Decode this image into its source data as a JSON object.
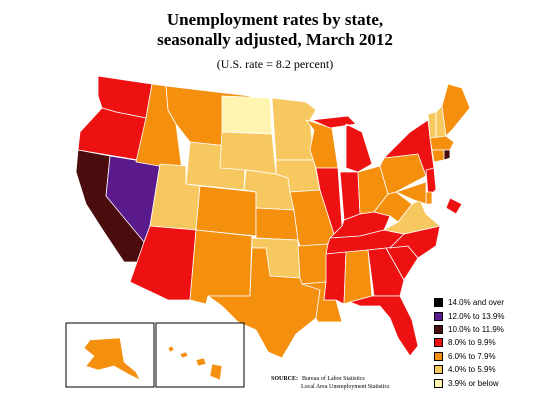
{
  "title_line1": "Unemployment rates by state,",
  "title_line2": "seasonally adjusted, March 2012",
  "subtitle": "(U.S. rate = 8.2 percent)",
  "legend": [
    {
      "label": "14.0% and over",
      "color": "#000000"
    },
    {
      "label": "12.0% to 13.9%",
      "color": "#5a1a8c"
    },
    {
      "label": "10.0% to 11.9%",
      "color": "#4a0c0c"
    },
    {
      "label": "8.0% to 9.9%",
      "color": "#ee1111"
    },
    {
      "label": "6.0% to 7.9%",
      "color": "#f5900f"
    },
    {
      "label": "4.0% to 5.9%",
      "color": "#f8c860"
    },
    {
      "label": "3.9% or below",
      "color": "#fff5b0"
    }
  ],
  "source_label": "SOURCE:",
  "source_line1": "Bureau of Labor Statistics",
  "source_line2": "Local Area Unemployment Statistics",
  "states": [
    {
      "id": "WA",
      "cat": 3
    },
    {
      "id": "OR",
      "cat": 3
    },
    {
      "id": "CA",
      "cat": 2
    },
    {
      "id": "NV",
      "cat": 1
    },
    {
      "id": "ID",
      "cat": 4
    },
    {
      "id": "MT",
      "cat": 4
    },
    {
      "id": "WY",
      "cat": 5
    },
    {
      "id": "UT",
      "cat": 5
    },
    {
      "id": "AZ",
      "cat": 3
    },
    {
      "id": "CO",
      "cat": 4
    },
    {
      "id": "NM",
      "cat": 4
    },
    {
      "id": "ND",
      "cat": 6
    },
    {
      "id": "SD",
      "cat": 5
    },
    {
      "id": "NE",
      "cat": 5
    },
    {
      "id": "KS",
      "cat": 4
    },
    {
      "id": "OK",
      "cat": 5
    },
    {
      "id": "TX",
      "cat": 4
    },
    {
      "id": "MN",
      "cat": 5
    },
    {
      "id": "IA",
      "cat": 5
    },
    {
      "id": "MO",
      "cat": 4
    },
    {
      "id": "AR",
      "cat": 4
    },
    {
      "id": "LA",
      "cat": 4
    },
    {
      "id": "WI",
      "cat": 4
    },
    {
      "id": "IL",
      "cat": 3
    },
    {
      "id": "IN",
      "cat": 3
    },
    {
      "id": "MI",
      "cat": 3
    },
    {
      "id": "OH",
      "cat": 4
    },
    {
      "id": "KY",
      "cat": 3
    },
    {
      "id": "TN",
      "cat": 3
    },
    {
      "id": "MS",
      "cat": 3
    },
    {
      "id": "AL",
      "cat": 4
    },
    {
      "id": "GA",
      "cat": 3
    },
    {
      "id": "FL",
      "cat": 3
    },
    {
      "id": "SC",
      "cat": 3
    },
    {
      "id": "NC",
      "cat": 3
    },
    {
      "id": "VA",
      "cat": 5
    },
    {
      "id": "WV",
      "cat": 4
    },
    {
      "id": "PA",
      "cat": 4
    },
    {
      "id": "NY",
      "cat": 3
    },
    {
      "id": "VT",
      "cat": 5
    },
    {
      "id": "NH",
      "cat": 5
    },
    {
      "id": "ME",
      "cat": 4
    },
    {
      "id": "MA",
      "cat": 4
    },
    {
      "id": "CT",
      "cat": 4
    },
    {
      "id": "RI",
      "cat": 2
    },
    {
      "id": "NJ",
      "cat": 3
    },
    {
      "id": "DE",
      "cat": 4
    },
    {
      "id": "MD",
      "cat": 4
    },
    {
      "id": "DC",
      "cat": 3
    },
    {
      "id": "AK",
      "cat": 4
    },
    {
      "id": "HI",
      "cat": 4
    }
  ]
}
